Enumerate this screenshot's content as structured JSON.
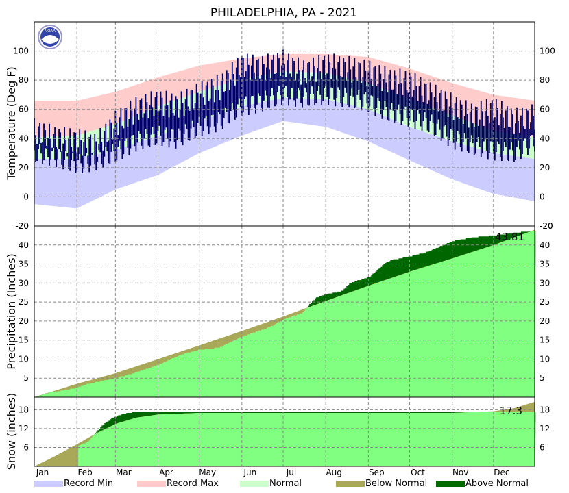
{
  "chart_data": {
    "type": "area",
    "title": "PHILADELPHIA, PA - 2021",
    "months": [
      "Jan",
      "Feb",
      "Mar",
      "Apr",
      "May",
      "Jun",
      "Jul",
      "Aug",
      "Sep",
      "Oct",
      "Nov",
      "Dec"
    ],
    "colors": {
      "record_min": "#ccccff",
      "record_max": "#ffcccc",
      "normal": "#ccffcc",
      "actual_temp": "#000066",
      "precip_normal": "#80ff80",
      "below_normal": "#a8a858",
      "above_normal": "#006600"
    },
    "panels": [
      {
        "id": "temperature",
        "ylabel": "Temperature (Deg F)",
        "ylim": [
          -20,
          120
        ],
        "yticks": [
          -20,
          0,
          20,
          40,
          60,
          80,
          100
        ],
        "series": [
          {
            "name": "Record Max",
            "x_day": [
              1,
              32,
              60,
              91,
              121,
              152,
              182,
              213,
              244,
              274,
              305,
              335,
              365
            ],
            "values": [
              66,
              66,
              72,
              82,
              90,
              95,
              98,
              98,
              96,
              88,
              78,
              70,
              66
            ]
          },
          {
            "name": "Normal High",
            "x_day": [
              1,
              32,
              60,
              91,
              121,
              152,
              182,
              213,
              244,
              274,
              305,
              335,
              365
            ],
            "values": [
              41,
              42,
              50,
              62,
              72,
              81,
              86,
              85,
              78,
              67,
              56,
              45,
              41
            ]
          },
          {
            "name": "Normal Low",
            "x_day": [
              1,
              32,
              60,
              91,
              121,
              152,
              182,
              213,
              244,
              274,
              305,
              335,
              365
            ],
            "values": [
              26,
              26,
              32,
              42,
              52,
              62,
              68,
              67,
              60,
              48,
              38,
              30,
              26
            ]
          },
          {
            "name": "Record Min",
            "x_day": [
              1,
              32,
              60,
              91,
              121,
              152,
              182,
              213,
              244,
              274,
              305,
              335,
              365
            ],
            "values": [
              -5,
              -8,
              5,
              15,
              30,
              42,
              52,
              48,
              38,
              25,
              12,
              2,
              -3
            ]
          },
          {
            "name": "Actual High",
            "x_day": [
              1,
              15,
              32,
              46,
              60,
              75,
              91,
              105,
              121,
              136,
              152,
              166,
              182,
              197,
              213,
              228,
              244,
              258,
              274,
              289,
              305,
              320,
              335,
              350,
              365
            ],
            "values": [
              45,
              40,
              38,
              35,
              50,
              60,
              65,
              62,
              70,
              75,
              90,
              88,
              92,
              85,
              90,
              88,
              85,
              80,
              78,
              70,
              62,
              55,
              60,
              52,
              55
            ]
          },
          {
            "name": "Actual Low",
            "x_day": [
              1,
              15,
              32,
              46,
              60,
              75,
              91,
              105,
              121,
              136,
              152,
              166,
              182,
              197,
              213,
              228,
              244,
              258,
              274,
              289,
              305,
              320,
              335,
              350,
              365
            ],
            "values": [
              30,
              28,
              22,
              25,
              30,
              38,
              42,
              40,
              48,
              52,
              62,
              65,
              70,
              68,
              70,
              68,
              65,
              58,
              55,
              50,
              40,
              35,
              32,
              30,
              38
            ]
          }
        ]
      },
      {
        "id": "precipitation",
        "ylabel": "Precipitation (Inches)",
        "ylim": [
          0,
          45
        ],
        "yticks": [
          5,
          10,
          15,
          20,
          25,
          30,
          35,
          40
        ],
        "total_label": "43.81",
        "series": [
          {
            "name": "Normal",
            "x_day": [
              1,
              32,
              60,
              91,
              121,
              152,
              182,
              213,
              244,
              274,
              305,
              335,
              365
            ],
            "values": [
              0,
              3.5,
              6.3,
              10,
              13.6,
              17.4,
              21.2,
              25.3,
              29.3,
              33,
              36.5,
              40,
              44
            ]
          },
          {
            "name": "Actual",
            "x_day": [
              1,
              10,
              32,
              40,
              60,
              70,
              91,
              100,
              110,
              121,
              135,
              152,
              165,
              175,
              182,
              195,
              205,
              213,
              225,
              230,
              244,
              255,
              260,
              274,
              285,
              305,
              320,
              335,
              350,
              365
            ],
            "values": [
              0,
              1,
              2.5,
              3.5,
              5,
              6,
              8.5,
              10,
              11.5,
              12.5,
              13,
              16,
              17.5,
              19,
              20.5,
              22,
              26,
              27,
              28,
              30,
              31.5,
              35,
              36,
              37,
              38,
              41,
              42,
              42.5,
              43.2,
              43.81
            ]
          }
        ]
      },
      {
        "id": "snow",
        "ylabel": "Snow (inches)",
        "ylim": [
          0,
          22
        ],
        "yticks": [
          6,
          12,
          18
        ],
        "total_label": "17.3",
        "series": [
          {
            "name": "Normal",
            "x_day": [
              1,
              15,
              32,
              46,
              60,
              75,
              91,
              121,
              305,
              335,
              350,
              365
            ],
            "values": [
              0,
              3,
              7,
              10.5,
              13.5,
              15.5,
              16.5,
              17,
              17,
              17.5,
              18.5,
              20.5
            ]
          },
          {
            "name": "Actual",
            "x_day": [
              1,
              32,
              33,
              40,
              50,
              58,
              66,
              75,
              365
            ],
            "values": [
              0,
              0,
              6.5,
              8,
              13,
              15.5,
              16.8,
              17.3,
              17.3
            ]
          }
        ]
      }
    ]
  },
  "legend": [
    {
      "name": "Record Min",
      "color": "#ccccff"
    },
    {
      "name": "Record Max",
      "color": "#ffcccc"
    },
    {
      "name": "Normal",
      "color": "#ccffcc"
    },
    {
      "name": "Below Normal",
      "color": "#a8a858"
    },
    {
      "name": "Above Normal",
      "color": "#006600"
    }
  ],
  "logo": {
    "text": "NOAA"
  }
}
